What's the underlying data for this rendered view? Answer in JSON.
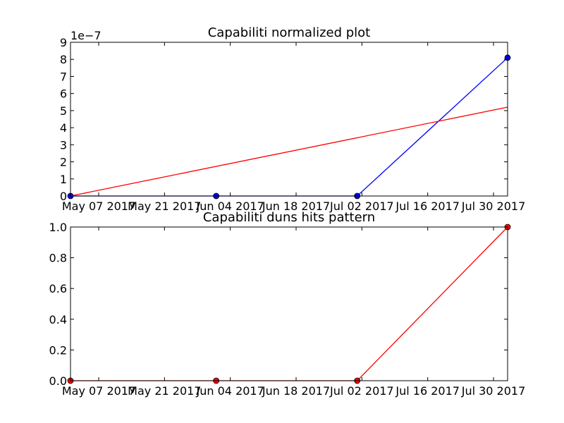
{
  "chart_data": [
    {
      "type": "line",
      "title": "Capabiliti normalized plot",
      "offset_text": "1e−7",
      "xlabel": "",
      "ylabel": "",
      "ylim": [
        0,
        9e-07
      ],
      "y_ticks": [
        0,
        1e-07,
        2e-07,
        3e-07,
        4e-07,
        5e-07,
        6e-07,
        7e-07,
        8e-07,
        9e-07
      ],
      "y_tick_labels": [
        "0",
        "1",
        "2",
        "3",
        "4",
        "5",
        "6",
        "7",
        "8",
        "9"
      ],
      "xlim": [
        "2017-05-01",
        "2017-08-02"
      ],
      "x_ticks": [
        "2017-05-07",
        "2017-05-21",
        "2017-06-04",
        "2017-06-18",
        "2017-07-02",
        "2017-07-16",
        "2017-07-30"
      ],
      "x_tick_labels": [
        "May 07 2017",
        "May 21 2017",
        "Jun 04 2017",
        "Jun 18 2017",
        "Jul 02 2017",
        "Jul 16 2017",
        "Jul 30 2017"
      ],
      "grid": false,
      "series": [
        {
          "color": "#0000ff",
          "marker": "circle",
          "points": [
            {
              "x": "2017-05-01",
              "y": 0
            },
            {
              "x": "2017-06-01",
              "y": 0
            },
            {
              "x": "2017-07-01",
              "y": 0
            },
            {
              "x": "2017-08-02",
              "y": 8.1e-07
            }
          ]
        },
        {
          "color": "#ff0000",
          "marker": "none",
          "points": [
            {
              "x": "2017-05-01",
              "y": 0
            },
            {
              "x": "2017-08-02",
              "y": 5.2e-07
            }
          ]
        }
      ]
    },
    {
      "type": "line",
      "title": "Capabiliti duns hits pattern",
      "xlabel": "",
      "ylabel": "",
      "ylim": [
        0,
        1.0
      ],
      "y_ticks": [
        0,
        0.2,
        0.4,
        0.6,
        0.8,
        1.0
      ],
      "y_tick_labels": [
        "0.0",
        "0.2",
        "0.4",
        "0.6",
        "0.8",
        "1.0"
      ],
      "xlim": [
        "2017-05-01",
        "2017-08-02"
      ],
      "x_ticks": [
        "2017-05-07",
        "2017-05-21",
        "2017-06-04",
        "2017-06-18",
        "2017-07-02",
        "2017-07-16",
        "2017-07-30"
      ],
      "x_tick_labels": [
        "May 07 2017",
        "May 21 2017",
        "Jun 04 2017",
        "Jun 18 2017",
        "Jul 02 2017",
        "Jul 16 2017",
        "Jul 30 2017"
      ],
      "grid": false,
      "series": [
        {
          "color": "#ff0000",
          "marker": "circle",
          "points": [
            {
              "x": "2017-05-01",
              "y": 0
            },
            {
              "x": "2017-06-01",
              "y": 0
            },
            {
              "x": "2017-07-01",
              "y": 0
            },
            {
              "x": "2017-08-02",
              "y": 1.0
            }
          ]
        }
      ]
    }
  ]
}
